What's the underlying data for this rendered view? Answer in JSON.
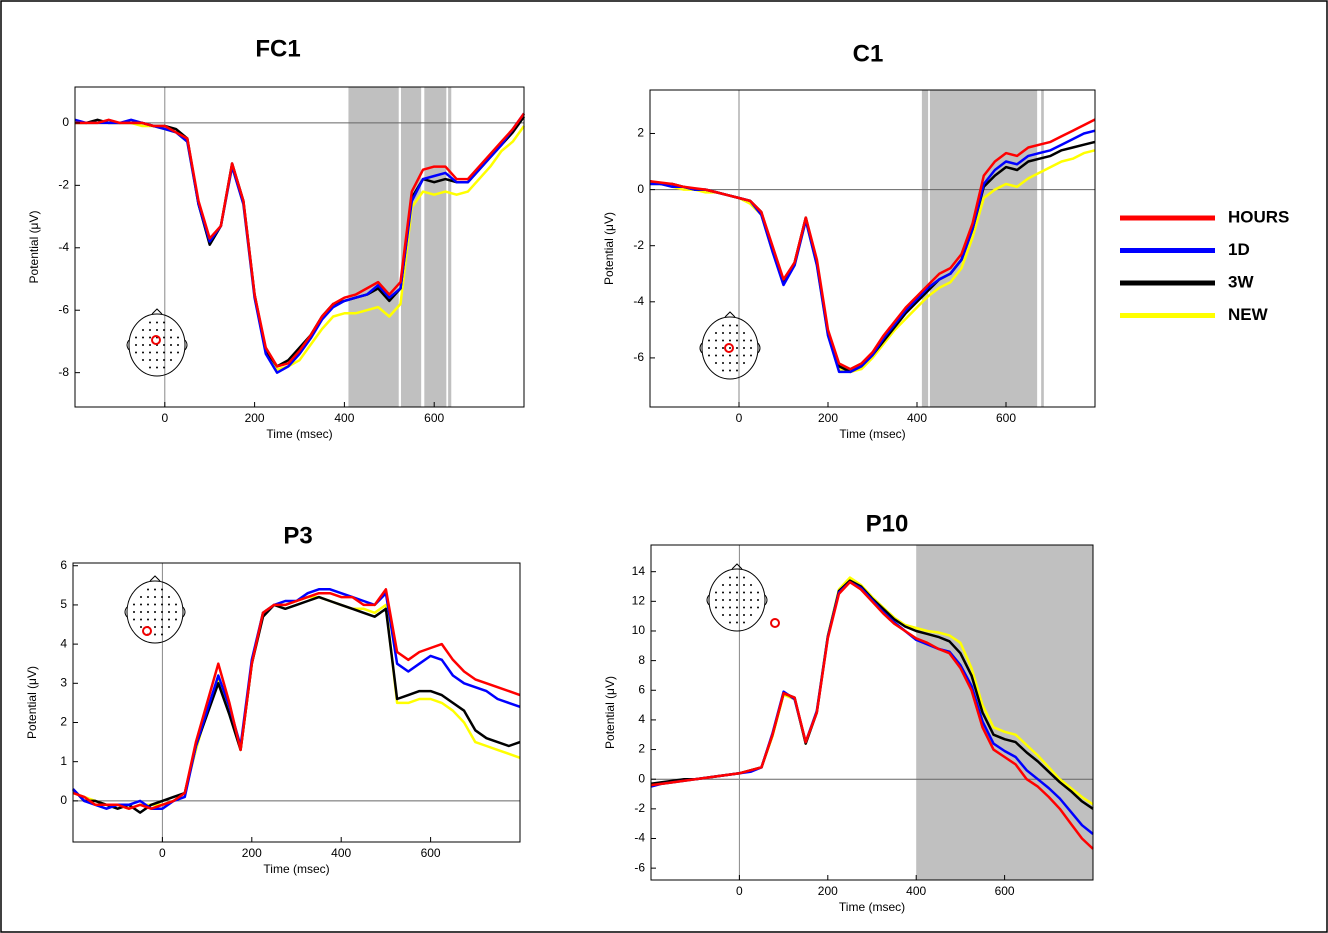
{
  "legend": {
    "series": [
      {
        "name": "HOURS",
        "color": "#ff0000"
      },
      {
        "name": "1D",
        "color": "#0000ff"
      },
      {
        "name": "3W",
        "color": "#000000"
      },
      {
        "name": "NEW",
        "color": "#ffff00"
      }
    ]
  },
  "chart_data": [
    {
      "type": "line",
      "title": "FC1",
      "xlabel": "Time (msec)",
      "ylabel": "Potential (μV)",
      "x": [
        -200,
        -175,
        -150,
        -125,
        -100,
        -75,
        -50,
        -25,
        0,
        25,
        50,
        75,
        100,
        125,
        150,
        175,
        200,
        225,
        250,
        275,
        300,
        325,
        350,
        375,
        400,
        425,
        450,
        475,
        500,
        525,
        550,
        575,
        600,
        625,
        650,
        675,
        700,
        725,
        750,
        775,
        800
      ],
      "xlim": [
        -200,
        800
      ],
      "ylim": [
        -9.1,
        1.15
      ],
      "xticks": [
        0,
        200,
        400,
        600
      ],
      "yticks": [
        -8,
        -6,
        -4,
        -2,
        0
      ],
      "shaded": [
        [
          409,
          521
        ],
        [
          526,
          571
        ],
        [
          578,
          627
        ],
        [
          631,
          638
        ]
      ],
      "series": [
        {
          "values": [
            0,
            0,
            0,
            0.1,
            0,
            0,
            0,
            -0.1,
            -0.1,
            -0.3,
            -0.5,
            -2.5,
            -3.7,
            -3.3,
            -1.3,
            -2.5,
            -5.5,
            -7.2,
            -7.8,
            -7.7,
            -7.3,
            -6.8,
            -6.2,
            -5.8,
            -5.6,
            -5.5,
            -5.3,
            -5.1,
            -5.5,
            -5.1,
            -2.2,
            -1.5,
            -1.4,
            -1.4,
            -1.8,
            -1.8,
            -1.4,
            -1,
            -0.6,
            -0.2,
            0.3
          ]
        },
        {
          "values": [
            0.1,
            0,
            0,
            0,
            0,
            0.1,
            0,
            -0.1,
            -0.2,
            -0.3,
            -0.6,
            -2.6,
            -3.8,
            -3.3,
            -1.4,
            -2.6,
            -5.6,
            -7.4,
            -8,
            -7.8,
            -7.4,
            -6.9,
            -6.3,
            -5.9,
            -5.7,
            -5.6,
            -5.5,
            -5.2,
            -5.6,
            -5.3,
            -2.5,
            -1.8,
            -1.7,
            -1.6,
            -1.9,
            -1.9,
            -1.5,
            -1.1,
            -0.7,
            -0.2,
            0.3
          ]
        },
        {
          "values": [
            0,
            0,
            0.1,
            0,
            0,
            0,
            0,
            -0.1,
            -0.1,
            -0.2,
            -0.5,
            -2.6,
            -3.9,
            -3.3,
            -1.3,
            -2.5,
            -5.5,
            -7.3,
            -7.8,
            -7.6,
            -7.2,
            -6.8,
            -6.2,
            -5.8,
            -5.7,
            -5.6,
            -5.5,
            -5.3,
            -5.7,
            -5.3,
            -2.4,
            -1.8,
            -1.9,
            -1.8,
            -1.9,
            -1.9,
            -1.5,
            -1.1,
            -0.7,
            -0.3,
            0.2
          ]
        },
        {
          "values": [
            0,
            0,
            0,
            0,
            0,
            0,
            -0.1,
            -0.1,
            -0.2,
            -0.3,
            -0.6,
            -2.6,
            -3.8,
            -3.3,
            -1.4,
            -2.6,
            -5.6,
            -7.3,
            -7.9,
            -7.8,
            -7.6,
            -7.1,
            -6.6,
            -6.2,
            -6.1,
            -6.1,
            -6,
            -5.9,
            -6.2,
            -5.8,
            -2.7,
            -2.2,
            -2.3,
            -2.2,
            -2.3,
            -2.2,
            -1.8,
            -1.4,
            -0.9,
            -0.6,
            -0.1
          ]
        }
      ]
    },
    {
      "type": "line",
      "title": "C1",
      "xlabel": "Time (msec)",
      "ylabel": "Potential (μV)",
      "x": [
        -200,
        -175,
        -150,
        -125,
        -100,
        -75,
        -50,
        -25,
        0,
        25,
        50,
        75,
        100,
        125,
        150,
        175,
        200,
        225,
        250,
        275,
        300,
        325,
        350,
        375,
        400,
        425,
        450,
        475,
        500,
        525,
        550,
        575,
        600,
        625,
        650,
        675,
        700,
        725,
        750,
        775,
        800
      ],
      "xlim": [
        -200,
        800
      ],
      "ylim": [
        -7.75,
        3.55
      ],
      "xticks": [
        0,
        200,
        400,
        600
      ],
      "yticks": [
        -6,
        -4,
        -2,
        0,
        2
      ],
      "shaded": [
        [
          411,
          425
        ],
        [
          429,
          670
        ],
        [
          679,
          685
        ]
      ],
      "series": [
        {
          "values": [
            0.3,
            0.25,
            0.2,
            0.1,
            0.05,
            0,
            -0.1,
            -0.2,
            -0.3,
            -0.4,
            -0.8,
            -2,
            -3.2,
            -2.6,
            -1,
            -2.5,
            -5,
            -6.2,
            -6.4,
            -6.2,
            -5.8,
            -5.2,
            -4.7,
            -4.2,
            -3.8,
            -3.4,
            -3,
            -2.8,
            -2.3,
            -1.2,
            0.5,
            1,
            1.3,
            1.2,
            1.5,
            1.6,
            1.7,
            1.9,
            2.1,
            2.3,
            2.5
          ]
        },
        {
          "values": [
            0.2,
            0.2,
            0.1,
            0.1,
            0,
            0,
            -0.1,
            -0.2,
            -0.3,
            -0.4,
            -0.9,
            -2.2,
            -3.4,
            -2.7,
            -1.1,
            -2.7,
            -5.2,
            -6.5,
            -6.5,
            -6.3,
            -5.9,
            -5.3,
            -4.8,
            -4.3,
            -3.9,
            -3.5,
            -3.2,
            -3,
            -2.5,
            -1.4,
            0.2,
            0.7,
            1,
            0.9,
            1.2,
            1.3,
            1.4,
            1.6,
            1.8,
            2,
            2.1
          ]
        },
        {
          "values": [
            0.3,
            0.2,
            0.2,
            0.1,
            0,
            0,
            -0.1,
            -0.2,
            -0.3,
            -0.4,
            -0.8,
            -2.1,
            -3.3,
            -2.6,
            -1,
            -2.6,
            -5.1,
            -6.3,
            -6.5,
            -6.3,
            -5.9,
            -5.4,
            -4.9,
            -4.4,
            -4,
            -3.6,
            -3.2,
            -3,
            -2.5,
            -1.4,
            0.1,
            0.5,
            0.8,
            0.7,
            1,
            1.1,
            1.2,
            1.4,
            1.5,
            1.6,
            1.7
          ]
        },
        {
          "values": [
            0.2,
            0.2,
            0.1,
            0,
            0,
            -0.1,
            -0.1,
            -0.2,
            -0.3,
            -0.5,
            -0.9,
            -2.2,
            -3.3,
            -2.7,
            -1.1,
            -2.7,
            -5.2,
            -6.4,
            -6.5,
            -6.4,
            -6,
            -5.5,
            -5,
            -4.6,
            -4.2,
            -3.8,
            -3.5,
            -3.3,
            -2.8,
            -1.7,
            -0.3,
            0,
            0.2,
            0.1,
            0.4,
            0.6,
            0.8,
            1,
            1.1,
            1.3,
            1.4
          ]
        }
      ]
    },
    {
      "type": "line",
      "title": "P3",
      "xlabel": "Time (msec)",
      "ylabel": "Potential (μV)",
      "x": [
        -200,
        -175,
        -150,
        -125,
        -100,
        -75,
        -50,
        -25,
        0,
        25,
        50,
        75,
        100,
        125,
        150,
        175,
        200,
        225,
        250,
        275,
        300,
        325,
        350,
        375,
        400,
        425,
        450,
        475,
        500,
        525,
        550,
        575,
        600,
        625,
        650,
        675,
        700,
        725,
        750,
        775,
        800
      ],
      "xlim": [
        -200,
        800
      ],
      "ylim": [
        -1.05,
        6.07
      ],
      "xticks": [
        0,
        200,
        400,
        600
      ],
      "yticks": [
        0,
        1,
        2,
        3,
        4,
        5,
        6
      ],
      "shaded": [],
      "series": [
        {
          "values": [
            0.2,
            0.1,
            -0.1,
            -0.1,
            -0.1,
            -0.2,
            -0.1,
            -0.2,
            -0.1,
            0,
            0.2,
            1.5,
            2.5,
            3.5,
            2.5,
            1.3,
            3.5,
            4.8,
            5,
            5,
            5.1,
            5.2,
            5.3,
            5.3,
            5.2,
            5.2,
            5,
            5,
            5.4,
            3.8,
            3.6,
            3.8,
            3.9,
            4,
            3.6,
            3.3,
            3.1,
            3,
            2.9,
            2.8,
            2.7
          ]
        },
        {
          "values": [
            0.3,
            0,
            -0.1,
            -0.2,
            -0.1,
            -0.1,
            0,
            -0.2,
            -0.2,
            0,
            0.1,
            1.4,
            2.3,
            3.2,
            2.4,
            1.4,
            3.6,
            4.8,
            5,
            5.1,
            5.1,
            5.3,
            5.4,
            5.4,
            5.3,
            5.2,
            5.1,
            5,
            5.3,
            3.5,
            3.3,
            3.5,
            3.7,
            3.6,
            3.2,
            3,
            2.9,
            2.8,
            2.6,
            2.5,
            2.4
          ]
        },
        {
          "values": [
            0.3,
            0,
            0,
            -0.1,
            -0.2,
            -0.1,
            -0.3,
            -0.1,
            0,
            0.1,
            0.2,
            1.4,
            2.2,
            3,
            2.2,
            1.3,
            3.5,
            4.7,
            5,
            4.9,
            5,
            5.1,
            5.2,
            5.1,
            5,
            4.9,
            4.8,
            4.7,
            4.9,
            2.6,
            2.7,
            2.8,
            2.8,
            2.7,
            2.5,
            2.3,
            1.8,
            1.6,
            1.5,
            1.4,
            1.5
          ]
        },
        {
          "values": [
            0.2,
            0.1,
            0,
            -0.1,
            -0.1,
            -0.2,
            -0.1,
            -0.1,
            -0.1,
            0,
            0.2,
            1.3,
            2.3,
            3.1,
            2.3,
            1.3,
            3.5,
            4.8,
            5,
            5,
            5.1,
            5.2,
            5.2,
            5.1,
            5,
            4.9,
            4.9,
            4.8,
            5,
            2.5,
            2.5,
            2.6,
            2.6,
            2.5,
            2.3,
            2,
            1.5,
            1.4,
            1.3,
            1.2,
            1.1
          ]
        }
      ]
    },
    {
      "type": "line",
      "title": "P10",
      "xlabel": "Time (msec)",
      "ylabel": "Potential (μV)",
      "x": [
        -200,
        -175,
        -150,
        -125,
        -100,
        -75,
        -50,
        -25,
        0,
        25,
        50,
        75,
        100,
        125,
        150,
        175,
        200,
        225,
        250,
        275,
        300,
        325,
        350,
        375,
        400,
        425,
        450,
        475,
        500,
        525,
        550,
        575,
        600,
        625,
        650,
        675,
        700,
        725,
        750,
        775,
        800
      ],
      "xlim": [
        -200,
        800
      ],
      "ylim": [
        -6.8,
        15.8
      ],
      "xticks": [
        0,
        200,
        400,
        600
      ],
      "yticks": [
        -6,
        -4,
        -2,
        0,
        2,
        4,
        6,
        8,
        10,
        12,
        14
      ],
      "shaded": [
        [
          400,
          800
        ]
      ],
      "series": [
        {
          "values": [
            -0.4,
            -0.3,
            -0.2,
            -0.1,
            0,
            0.1,
            0.2,
            0.3,
            0.4,
            0.6,
            0.8,
            3,
            5.8,
            5.5,
            2.5,
            4.5,
            9.5,
            12.5,
            13.3,
            12.8,
            12,
            11.2,
            10.5,
            10,
            9.5,
            9.2,
            8.8,
            8.5,
            7.5,
            6,
            3.5,
            2,
            1.5,
            1,
            0,
            -0.5,
            -1.2,
            -2,
            -3,
            -4,
            -4.7
          ]
        },
        {
          "values": [
            -0.5,
            -0.3,
            -0.2,
            -0.1,
            0,
            0.1,
            0.2,
            0.3,
            0.4,
            0.5,
            0.8,
            3.1,
            5.9,
            5.4,
            2.5,
            4.6,
            9.6,
            12.6,
            13.3,
            12.9,
            12.1,
            11.3,
            10.6,
            10,
            9.4,
            9.1,
            8.8,
            8.6,
            7.7,
            6.3,
            3.9,
            2.4,
            1.9,
            1.5,
            0.6,
            0,
            -0.6,
            -1.3,
            -2.2,
            -3.1,
            -3.7
          ]
        },
        {
          "values": [
            -0.3,
            -0.2,
            -0.1,
            0,
            0,
            0.1,
            0.2,
            0.3,
            0.4,
            0.6,
            0.8,
            3,
            5.8,
            5.5,
            2.4,
            4.5,
            9.6,
            12.7,
            13.4,
            13,
            12.2,
            11.5,
            10.8,
            10.3,
            10,
            9.8,
            9.6,
            9.3,
            8.5,
            7,
            4.5,
            3,
            2.7,
            2.5,
            1.8,
            1.2,
            0.5,
            -0.2,
            -0.8,
            -1.5,
            -2
          ]
        },
        {
          "values": [
            -0.4,
            -0.3,
            -0.2,
            -0.1,
            0,
            0.1,
            0.2,
            0.3,
            0.4,
            0.6,
            0.8,
            2.9,
            5.7,
            5.4,
            2.4,
            4.6,
            9.7,
            12.8,
            13.6,
            13.1,
            12.3,
            11.6,
            10.9,
            10.4,
            10.2,
            10,
            9.9,
            9.7,
            9.2,
            7.5,
            5,
            3.5,
            3.2,
            3,
            2.3,
            1.6,
            0.8,
            0,
            -0.6,
            -1.2,
            -1.7
          ]
        }
      ]
    }
  ]
}
